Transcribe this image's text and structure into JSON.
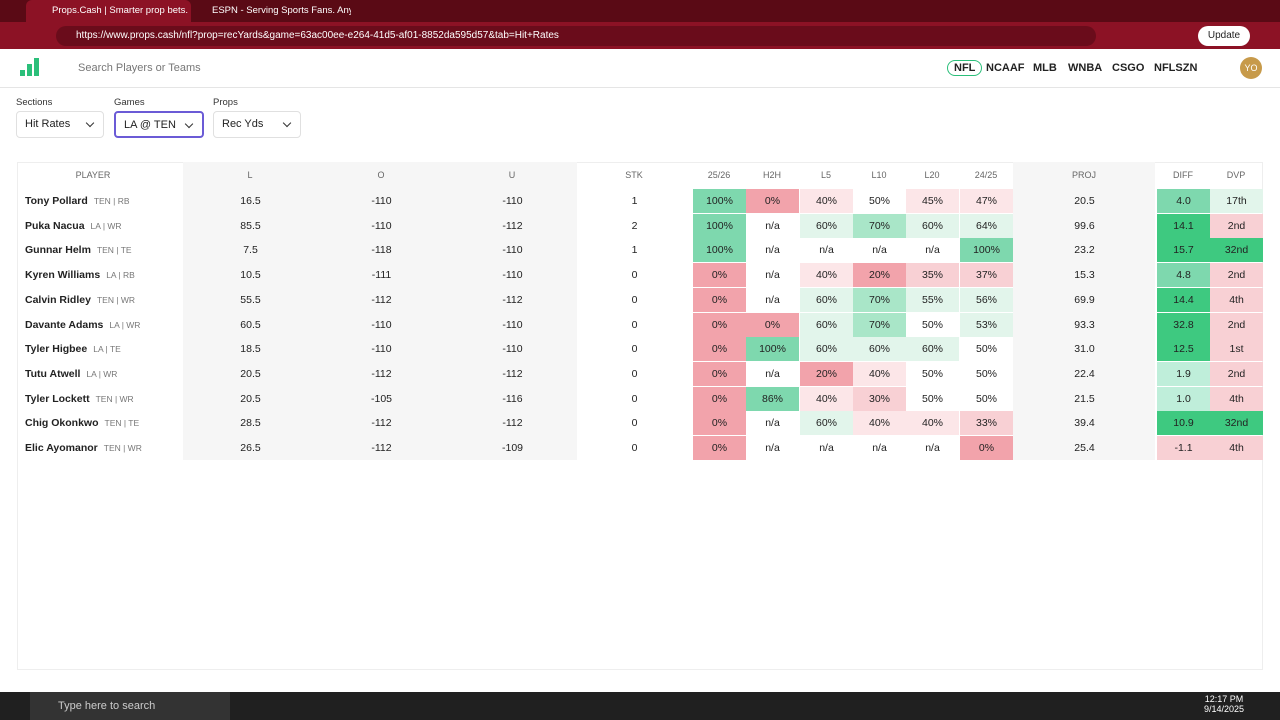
{
  "browser": {
    "tabs": [
      "Props.Cash | Smarter prop bets. M",
      "ESPN - Serving Sports Fans. Anyti"
    ],
    "url": "https://www.props.cash/nfl?prop=recYards&game=63ac00ee-e264-41d5-af01-8852da595d57&tab=Hit+Rates",
    "update": "Update"
  },
  "nav": {
    "search": "Search Players or Teams",
    "leagues": [
      "NFL",
      "NCAAF",
      "MLB",
      "WNBA",
      "CSGO",
      "NFLSZN"
    ],
    "avatar": "YO"
  },
  "filters": [
    {
      "label": "Sections",
      "value": "Hit Rates"
    },
    {
      "label": "Games",
      "value": "LA @ TEN"
    },
    {
      "label": "Props",
      "value": "Rec Yds"
    }
  ],
  "table": {
    "columns": [
      "PLAYER",
      "L",
      "O",
      "U",
      "STK",
      "25/26",
      "H2H",
      "L5",
      "L10",
      "L20",
      "24/25",
      "PROJ",
      "DIFF",
      "DVP"
    ],
    "rows": [
      [
        "Tony Pollard",
        "TEN | RB",
        "16.5",
        "-110",
        "-110",
        "1",
        "100%",
        "0%",
        "40%",
        "50%",
        "45%",
        "47%",
        "20.5",
        "4.0",
        "17th"
      ],
      [
        "Puka Nacua",
        "LA | WR",
        "85.5",
        "-110",
        "-112",
        "2",
        "100%",
        "n/a",
        "60%",
        "70%",
        "60%",
        "64%",
        "99.6",
        "14.1",
        "2nd"
      ],
      [
        "Gunnar Helm",
        "TEN | TE",
        "7.5",
        "-118",
        "-110",
        "1",
        "100%",
        "n/a",
        "n/a",
        "n/a",
        "n/a",
        "100%",
        "23.2",
        "15.7",
        "32nd"
      ],
      [
        "Kyren Williams",
        "LA | RB",
        "10.5",
        "-111",
        "-110",
        "0",
        "0%",
        "n/a",
        "40%",
        "20%",
        "35%",
        "37%",
        "15.3",
        "4.8",
        "2nd"
      ],
      [
        "Calvin Ridley",
        "TEN | WR",
        "55.5",
        "-112",
        "-112",
        "0",
        "0%",
        "n/a",
        "60%",
        "70%",
        "55%",
        "56%",
        "69.9",
        "14.4",
        "4th"
      ],
      [
        "Davante Adams",
        "LA | WR",
        "60.5",
        "-110",
        "-110",
        "0",
        "0%",
        "0%",
        "60%",
        "70%",
        "50%",
        "53%",
        "93.3",
        "32.8",
        "2nd"
      ],
      [
        "Tyler Higbee",
        "LA | TE",
        "18.5",
        "-110",
        "-110",
        "0",
        "0%",
        "100%",
        "60%",
        "60%",
        "60%",
        "50%",
        "31.0",
        "12.5",
        "1st"
      ],
      [
        "Tutu Atwell",
        "LA | WR",
        "20.5",
        "-112",
        "-112",
        "0",
        "0%",
        "n/a",
        "20%",
        "40%",
        "50%",
        "50%",
        "22.4",
        "1.9",
        "2nd"
      ],
      [
        "Tyler Lockett",
        "TEN | WR",
        "20.5",
        "-105",
        "-116",
        "0",
        "0%",
        "86%",
        "40%",
        "30%",
        "50%",
        "50%",
        "21.5",
        "1.0",
        "4th"
      ],
      [
        "Chig Okonkwo",
        "TEN | TE",
        "28.5",
        "-112",
        "-112",
        "0",
        "0%",
        "n/a",
        "60%",
        "40%",
        "40%",
        "33%",
        "39.4",
        "10.9",
        "32nd"
      ],
      [
        "Elic Ayomanor",
        "TEN | WR",
        "26.5",
        "-112",
        "-109",
        "0",
        "0%",
        "n/a",
        "n/a",
        "n/a",
        "n/a",
        "0%",
        "25.4",
        "-1.1",
        "4th"
      ]
    ]
  },
  "taskbar": {
    "search": "Type here to search",
    "time": "12:17 PM",
    "date": "9/14/2025"
  }
}
